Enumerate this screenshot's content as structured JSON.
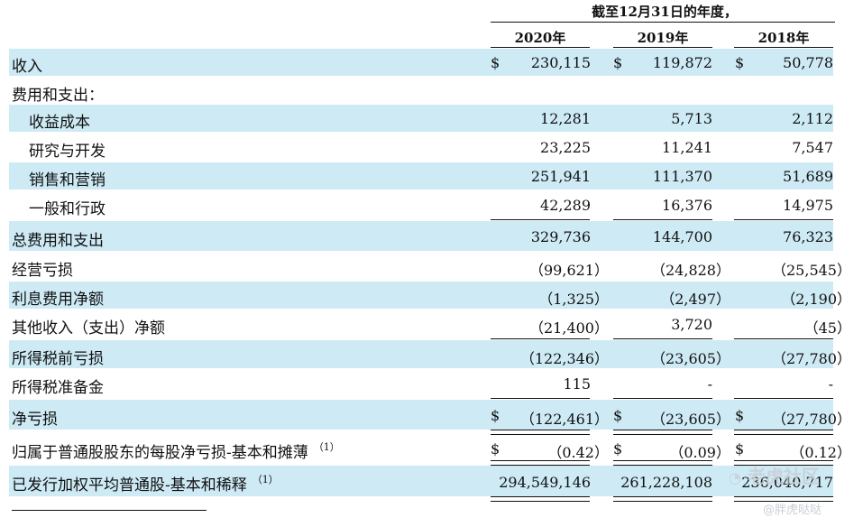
{
  "header": {
    "period": "截至12月31日的年度，",
    "years": [
      "2020年",
      "2019年",
      "2018年"
    ]
  },
  "rows": [
    {
      "label": "收入",
      "c1": "230,115",
      "c2": "119,872",
      "c3": "50,778",
      "dollar": "$"
    },
    {
      "label": "费用和支出：",
      "c1": "",
      "c2": "",
      "c3": "",
      "dollar": ""
    },
    {
      "label": "收益成本",
      "c1": "12,281",
      "c2": "5,713",
      "c3": "2,112",
      "dollar": ""
    },
    {
      "label": "研究与开发",
      "c1": "23,225",
      "c2": "11,241",
      "c3": "7,547",
      "dollar": ""
    },
    {
      "label": "销售和营销",
      "c1": "251,941",
      "c2": "111,370",
      "c3": "51,689",
      "dollar": ""
    },
    {
      "label": "一般和行政",
      "c1": "42,289",
      "c2": "16,376",
      "c3": "14,975",
      "dollar": ""
    },
    {
      "label": "总费用和支出",
      "c1": "329,736",
      "c2": "144,700",
      "c3": "76,323",
      "dollar": ""
    },
    {
      "label": "经营亏损",
      "c1": "（99,621）",
      "c2": "（24,828）",
      "c3": "（25,545）",
      "dollar": ""
    },
    {
      "label": "利息费用净额",
      "c1": "（1,325）",
      "c2": "（2,497）",
      "c3": "（2,190）",
      "dollar": ""
    },
    {
      "label": "其他收入（支出）净额",
      "c1": "（21,400）",
      "c2": "3,720",
      "c3": "（45）",
      "dollar": ""
    },
    {
      "label": "所得税前亏损",
      "c1": "（122,346）",
      "c2": "（23,605）",
      "c3": "（27,780）",
      "dollar": ""
    },
    {
      "label": "所得税准备金",
      "c1": "115",
      "c2": "-",
      "c3": "-",
      "dollar": ""
    },
    {
      "label": "净亏损",
      "c1": "（122,461）",
      "c2": "（23,605）",
      "c3": "（27,780）",
      "dollar": "$"
    },
    {
      "label": "归属于普通股股东的每股净亏损-基本和摊薄",
      "sup": "（1）",
      "c1": "（0.42）",
      "c2": "（0.09）",
      "c3": "（0.12）",
      "dollar": "$"
    },
    {
      "label": "已发行加权平均普通股-基本和稀释",
      "sup": "（1）",
      "c1": "294,549,146",
      "c2": "261,228,108",
      "c3": "236,040,717",
      "dollar": ""
    }
  ],
  "watermark": {
    "top": "老虎社区",
    "bottom": "@胖虎哒哒"
  }
}
